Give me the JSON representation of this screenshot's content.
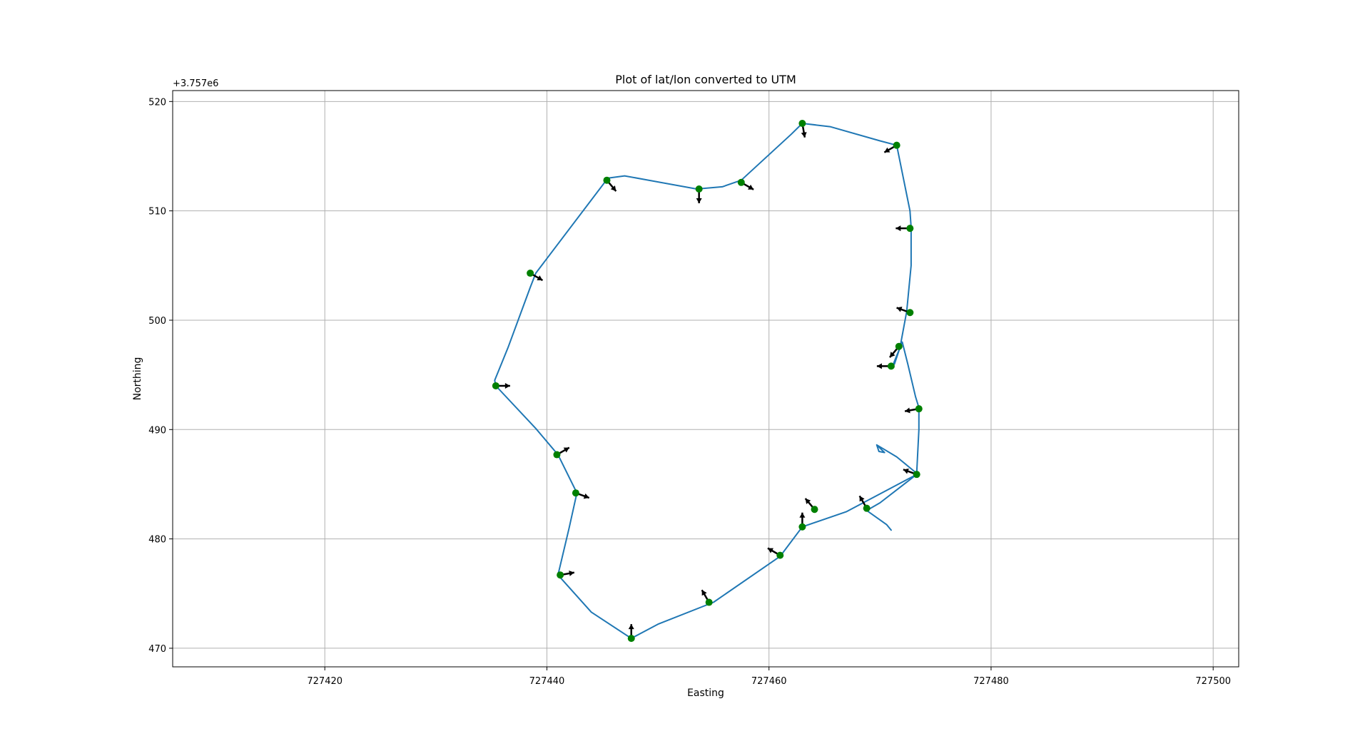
{
  "chart_data": {
    "type": "line",
    "title": "Plot of lat/lon converted to UTM",
    "xlabel": "Easting",
    "ylabel": "Northing",
    "y_offset_label": "+3.757e6",
    "xlim": [
      727406.3,
      727502.3
    ],
    "ylim": [
      468.3,
      521.0
    ],
    "grid": true,
    "x_ticks": [
      727420,
      727440,
      727460,
      727480,
      727500
    ],
    "x_tick_labels": [
      "727420",
      "727440",
      "727460",
      "727480",
      "727500"
    ],
    "y_ticks": [
      470,
      480,
      490,
      500,
      510,
      520
    ],
    "y_tick_labels": [
      "470",
      "480",
      "490",
      "500",
      "510",
      "520"
    ],
    "colors": {
      "track": "#1f77b4",
      "points": "#008000",
      "arrows": "#000000",
      "grid": "#b0b0b0"
    },
    "series": [
      {
        "kind": "track",
        "x": [
          727471.0,
          727470.6,
          727468.8,
          727470.0,
          727473.3,
          727467.0,
          727463.0,
          727461.0,
          727455.0,
          727450.0,
          727447.6,
          727444.0,
          727441.0,
          727442.0,
          727442.7,
          727441.0,
          727439.0,
          727435.4,
          727435.3,
          727436.5,
          727438.5,
          727439.0,
          727445.5,
          727447.0,
          727453.5,
          727455.8,
          727457.5,
          727462.0,
          727463.0,
          727465.5,
          727470.0,
          727471.5,
          727472.3,
          727472.7,
          727472.8,
          727472.8,
          727472.4,
          727471.8,
          727471.3,
          727471.0,
          727471.2,
          727472.0,
          727472.5,
          727473.2,
          727473.5,
          727473.5,
          727473.3,
          727471.5,
          727469.7,
          727469.9,
          727470.4,
          727469.8
        ],
        "y": [
          480.8,
          481.3,
          482.6,
          483.3,
          485.9,
          482.5,
          481.1,
          478.4,
          474.2,
          472.2,
          470.9,
          473.3,
          476.7,
          481.0,
          484.2,
          487.7,
          490.1,
          494.0,
          494.5,
          497.5,
          503.0,
          504.3,
          513.0,
          513.2,
          512.0,
          512.2,
          512.8,
          517.0,
          518.0,
          517.7,
          516.4,
          516.0,
          512.0,
          510.0,
          508.5,
          505.0,
          500.8,
          497.5,
          496.0,
          495.7,
          496.0,
          498.0,
          496.0,
          493.0,
          492.0,
          490.0,
          486.0,
          487.5,
          488.6,
          488.0,
          487.9,
          488.5
        ]
      },
      {
        "kind": "points",
        "x": [
          727447.6,
          727454.6,
          727461.0,
          727463.0,
          727464.1,
          727468.8,
          727473.3,
          727473.5,
          727471.0,
          727471.7,
          727472.7,
          727472.7,
          727471.5,
          727463.0,
          727457.5,
          727453.7,
          727445.4,
          727438.5,
          727435.4,
          727440.9,
          727442.6,
          727441.2
        ],
        "y": [
          470.9,
          474.2,
          478.5,
          481.1,
          482.7,
          482.8,
          485.9,
          491.9,
          495.8,
          497.6,
          500.7,
          508.4,
          516.0,
          518.0,
          512.6,
          512.0,
          512.8,
          504.3,
          494.0,
          487.7,
          484.2,
          476.7
        ]
      },
      {
        "kind": "arrows",
        "heading_deg": [
          90,
          120,
          150,
          90,
          130,
          120,
          160,
          190,
          180,
          230,
          160,
          180,
          210,
          280,
          330,
          270,
          310,
          330,
          0,
          30,
          340,
          10
        ]
      }
    ]
  }
}
